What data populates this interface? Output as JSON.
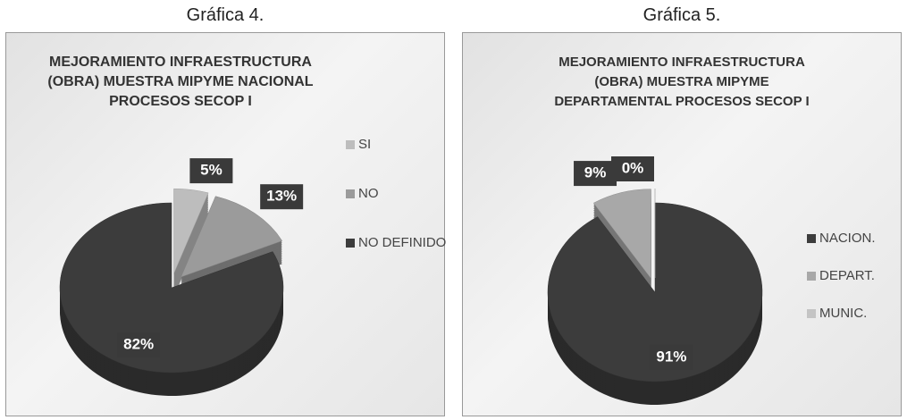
{
  "chart_data": [
    {
      "type": "pie",
      "heading": "Gráfica 4.",
      "title": "MEJORAMIENTO INFRAESTRUCTURA (OBRA) MUESTRA MIPYME NACIONAL PROCESOS SECOP I",
      "categories": [
        "SI",
        "NO",
        "NO DEFINIDO"
      ],
      "values": [
        5,
        13,
        82
      ],
      "value_labels": [
        "5%",
        "13%",
        "82%"
      ],
      "colors": [
        "#bdbdbd",
        "#9b9b9b",
        "#3c3c3c"
      ],
      "legend": "right"
    },
    {
      "type": "pie",
      "heading": "Gráfica 5.",
      "title": "MEJORAMIENTO INFRAESTRUCTURA (OBRA) MUESTRA MIPYME DEPARTAMENTAL PROCESOS SECOP I",
      "categories": [
        "NACION.",
        "DEPART.",
        "MUNIC."
      ],
      "values": [
        91,
        9,
        0
      ],
      "value_labels": [
        "91%",
        "9%",
        "0%"
      ],
      "colors": [
        "#3c3c3c",
        "#a8a8a8",
        "#c4c4c4"
      ],
      "legend": "right"
    }
  ]
}
